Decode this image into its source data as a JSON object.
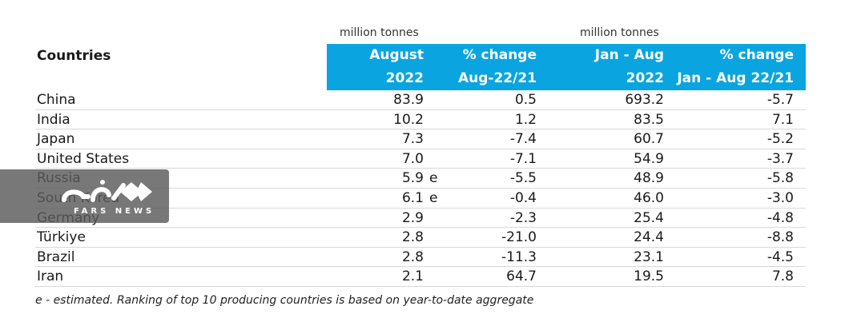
{
  "units": {
    "left": "million tonnes",
    "right": "million tonnes"
  },
  "header": {
    "countries": "Countries",
    "col1": [
      "August",
      "2022"
    ],
    "col2": [
      "% change",
      "Aug-22/21"
    ],
    "col3": [
      "Jan - Aug",
      "2022"
    ],
    "col4": [
      "% change",
      "Jan - Aug 22/21"
    ]
  },
  "rows": [
    {
      "name": "China",
      "aug": "83.9",
      "est": "",
      "chg": "0.5",
      "ytd": "693.2",
      "ytdchg": "-5.7"
    },
    {
      "name": "India",
      "aug": "10.2",
      "est": "",
      "chg": "1.2",
      "ytd": "83.5",
      "ytdchg": "7.1"
    },
    {
      "name": "Japan",
      "aug": "7.3",
      "est": "",
      "chg": "-7.4",
      "ytd": "60.7",
      "ytdchg": "-5.2"
    },
    {
      "name": "United States",
      "aug": "7.0",
      "est": "",
      "chg": "-7.1",
      "ytd": "54.9",
      "ytdchg": "-3.7"
    },
    {
      "name": "Russia",
      "aug": "5.9",
      "est": "e",
      "chg": "-5.5",
      "ytd": "48.9",
      "ytdchg": "-5.8"
    },
    {
      "name": "South Korea",
      "aug": "6.1",
      "est": "e",
      "chg": "-0.4",
      "ytd": "46.0",
      "ytdchg": "-3.0"
    },
    {
      "name": "Germany",
      "aug": "2.9",
      "est": "",
      "chg": "-2.3",
      "ytd": "25.4",
      "ytdchg": "-4.8"
    },
    {
      "name": "Türkiye",
      "aug": "2.8",
      "est": "",
      "chg": "-21.0",
      "ytd": "24.4",
      "ytdchg": "-8.8"
    },
    {
      "name": "Brazil",
      "aug": "2.8",
      "est": "",
      "chg": "-11.3",
      "ytd": "23.1",
      "ytdchg": "-4.5"
    },
    {
      "name": "Iran",
      "aug": "2.1",
      "est": "",
      "chg": "64.7",
      "ytd": "19.5",
      "ytdchg": "7.8"
    }
  ],
  "footnote": "e - estimated. Ranking of top 10 producing countries is based on year-to-date aggregate",
  "watermark": {
    "text": "FARS NEWS"
  },
  "colors": {
    "header_band": "#0aa5e0",
    "header_text": "#ffffff",
    "row_divider": "#d9d9d9"
  }
}
